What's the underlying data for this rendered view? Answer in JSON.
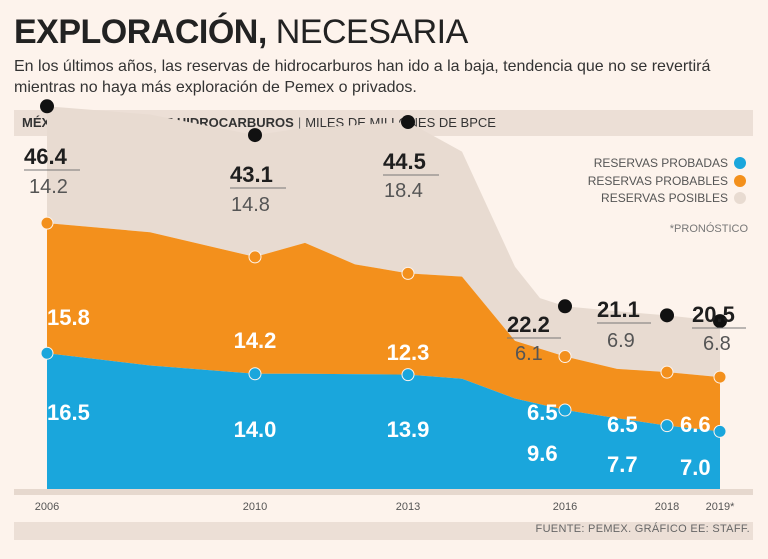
{
  "header": {
    "title_bold": "EXPLORACIÓN,",
    "title_light": "NECESARIA",
    "subtitle": "En los últimos años, las reservas de hidrocarburos han ido a la baja, tendencia que no se revertirá mientras no haya más exploración de Pemex o privados."
  },
  "section_bar": {
    "title": "MÉXICO: RESERVAS DE HIDROCARBUROS",
    "separator": "|",
    "unit": "MILES DE MILLONES DE BPCE"
  },
  "footer": {
    "source": "FUENTE: PEMEX. GRÁFICO EE: STAFF."
  },
  "colors": {
    "probadas": "#1aa6dc",
    "probables": "#f3901c",
    "posibles": "#e8dbd1",
    "point_total": "#111111"
  },
  "chart_data": {
    "type": "area",
    "title": "MÉXICO: RESERVAS DE HIDROCARBUROS",
    "unit": "MILES DE MILLONES DE BPCE",
    "note": "*PRONÓSTICO",
    "legend_position": "top-right",
    "x_labels": [
      "2006",
      "2010",
      "2013",
      "2016",
      "2018",
      "2019*"
    ],
    "series": [
      {
        "name": "RESERVAS PROBADAS",
        "key": "probadas",
        "values": [
          16.5,
          14.0,
          13.9,
          9.6,
          7.7,
          7.0
        ]
      },
      {
        "name": "RESERVAS PROBABLES",
        "key": "probables",
        "values": [
          15.8,
          14.2,
          12.3,
          6.5,
          6.5,
          6.6
        ]
      },
      {
        "name": "RESERVAS POSIBLES",
        "key": "posibles",
        "values": [
          14.2,
          14.8,
          18.4,
          6.1,
          6.9,
          6.8
        ]
      }
    ],
    "totals": [
      46.4,
      43.1,
      44.5,
      22.2,
      21.1,
      20.5
    ],
    "value_labels": {
      "probadas": [
        "16.5",
        "14.0",
        "13.9",
        "9.6",
        "7.7",
        "7.0"
      ],
      "probables": [
        "15.8",
        "14.2",
        "12.3",
        "6.5",
        "6.5",
        "6.6"
      ],
      "posibles": [
        "14.2",
        "14.8",
        "18.4",
        "6.1",
        "6.9",
        "6.8"
      ],
      "totals": [
        "46.4",
        "43.1",
        "44.5",
        "22.2",
        "21.1",
        "20.5"
      ]
    },
    "ylim": [
      0,
      50
    ]
  }
}
